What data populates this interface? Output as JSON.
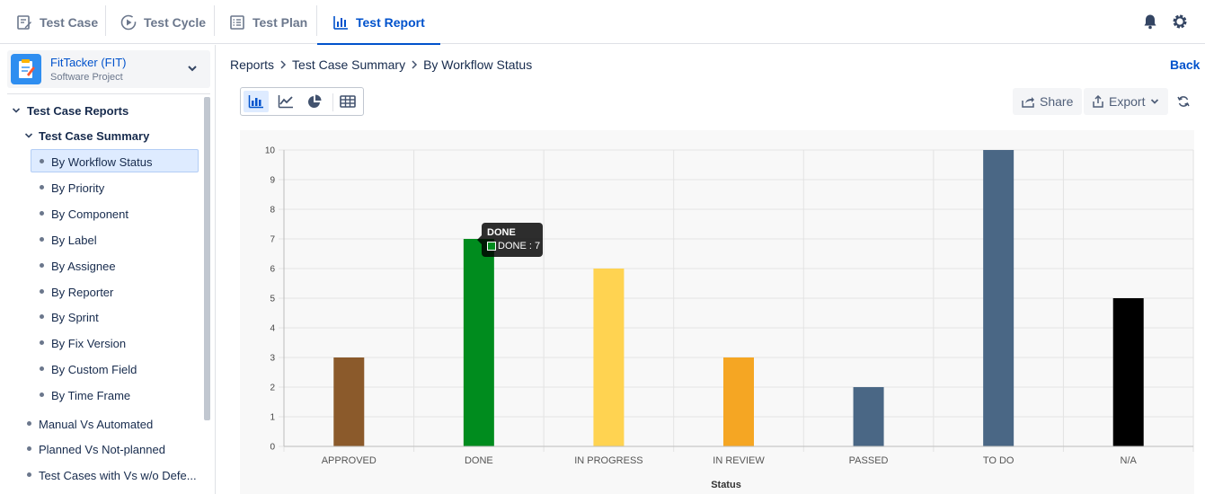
{
  "nav": {
    "tabs": [
      {
        "label": "Test Case",
        "icon": "edit-document-icon"
      },
      {
        "label": "Test Cycle",
        "icon": "play-cycle-icon"
      },
      {
        "label": "Test Plan",
        "icon": "checklist-icon"
      },
      {
        "label": "Test Report",
        "icon": "bar-chart-icon",
        "active": true
      }
    ],
    "icons": [
      "bell-icon",
      "gear-icon"
    ]
  },
  "project": {
    "name": "FitTacker (FIT)",
    "type": "Software Project"
  },
  "sidebar": {
    "group": "Test Case Reports",
    "subgroup": "Test Case Summary",
    "items": [
      "By Workflow Status",
      "By Priority",
      "By Component",
      "By Label",
      "By Assignee",
      "By Reporter",
      "By Sprint",
      "By Fix Version",
      "By Custom Field",
      "By Time Frame"
    ],
    "selected": "By Workflow Status",
    "other_reports": [
      "Manual Vs Automated",
      "Planned Vs Not-planned",
      "Test Cases with Vs w/o Defe..."
    ]
  },
  "breadcrumb": [
    "Reports",
    "Test Case Summary",
    "By Workflow Status"
  ],
  "back_label": "Back",
  "toolbar": {
    "share_label": "Share",
    "export_label": "Export",
    "view_modes": [
      "bar-chart-icon",
      "line-chart-icon",
      "pie-chart-icon",
      "table-icon"
    ],
    "active_view": "bar-chart-icon"
  },
  "chart_data": {
    "type": "bar",
    "categories": [
      "APPROVED",
      "DONE",
      "IN PROGRESS",
      "IN REVIEW",
      "PASSED",
      "TO DO",
      "N/A"
    ],
    "values": [
      3,
      7,
      6,
      3,
      2,
      10,
      5
    ],
    "colors": [
      "#8b5a2b",
      "#008c1e",
      "#ffd351",
      "#f5a623",
      "#4a6785",
      "#4a6785",
      "#000000"
    ],
    "xlabel": "Status",
    "ylabel": "",
    "ylim": [
      0,
      10
    ],
    "yticks": [
      "0",
      "1",
      "2",
      "3",
      "4",
      "5",
      "6",
      "7",
      "8",
      "9",
      "10"
    ],
    "grid": true
  },
  "tooltip": {
    "title": "DONE",
    "body": "DONE : 7"
  }
}
